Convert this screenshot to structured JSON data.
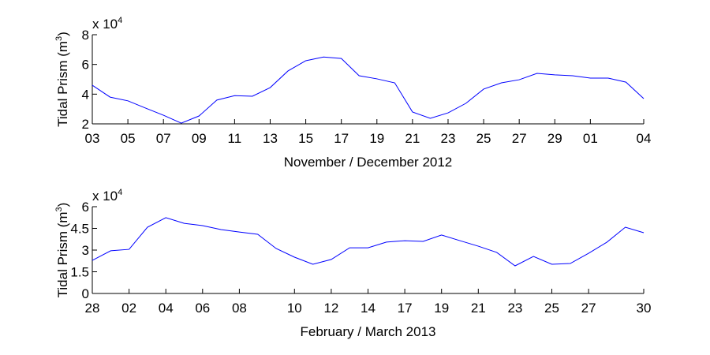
{
  "chart_data": [
    {
      "type": "line",
      "xlabel": "November / December 2012",
      "ylabel": "Tidal Prism (m",
      "ylabel_sup": "3",
      "ylabel_end": ")",
      "y_multiplier": "x 10",
      "y_multiplier_exp": "4",
      "categories": [
        "03",
        null,
        "05",
        null,
        "07",
        null,
        "09",
        null,
        "11",
        null,
        "13",
        null,
        "15",
        null,
        "17",
        null,
        "19",
        null,
        "21",
        null,
        "23",
        null,
        "25",
        null,
        "27",
        null,
        "29",
        null,
        "01",
        null,
        null,
        "04"
      ],
      "series": [
        {
          "name": "Tidal prism",
          "color": "#0000ff",
          "values": [
            46000,
            38000,
            35500,
            30600,
            25800,
            20500,
            25300,
            36000,
            39000,
            38600,
            44400,
            55600,
            62500,
            65000,
            64000,
            52400,
            50300,
            47600,
            28000,
            23700,
            27400,
            33800,
            43400,
            47600,
            49700,
            54000,
            53000,
            52400,
            50800,
            50800,
            48100,
            37000
          ]
        }
      ],
      "ylim": [
        20000,
        80000
      ],
      "yticks": [
        {
          "value": 20000,
          "label": "2"
        },
        {
          "value": 40000,
          "label": "4"
        },
        {
          "value": 60000,
          "label": "6"
        },
        {
          "value": 80000,
          "label": "8"
        }
      ]
    },
    {
      "type": "line",
      "xlabel": "February / March 2013",
      "ylabel": "Tidal Prism (m",
      "ylabel_sup": "3",
      "ylabel_end": ")",
      "y_multiplier": "x 10",
      "y_multiplier_exp": "4",
      "categories": [
        "28",
        null,
        "02",
        null,
        "04",
        null,
        "06",
        null,
        "08",
        null,
        null,
        "10",
        null,
        "12",
        null,
        "14",
        null,
        "17",
        null,
        "19",
        null,
        "21",
        null,
        "23",
        null,
        "25",
        null,
        "27",
        null,
        null,
        "30"
      ],
      "series": [
        {
          "name": "Tidal prism",
          "color": "#0000ff",
          "values": [
            22900,
            29500,
            30500,
            45800,
            52400,
            48500,
            46900,
            44200,
            42500,
            40900,
            31100,
            25100,
            20200,
            23500,
            31600,
            31600,
            35500,
            36500,
            36000,
            40400,
            36500,
            32700,
            28400,
            19100,
            25600,
            20200,
            20700,
            27800,
            35500,
            45800,
            42000
          ]
        }
      ],
      "ylim": [
        0,
        60000
      ],
      "yticks": [
        {
          "value": 0,
          "label": "0"
        },
        {
          "value": 15000,
          "label": "1.5"
        },
        {
          "value": 30000,
          "label": "3"
        },
        {
          "value": 45000,
          "label": "4.5"
        },
        {
          "value": 60000,
          "label": "6"
        }
      ]
    }
  ]
}
